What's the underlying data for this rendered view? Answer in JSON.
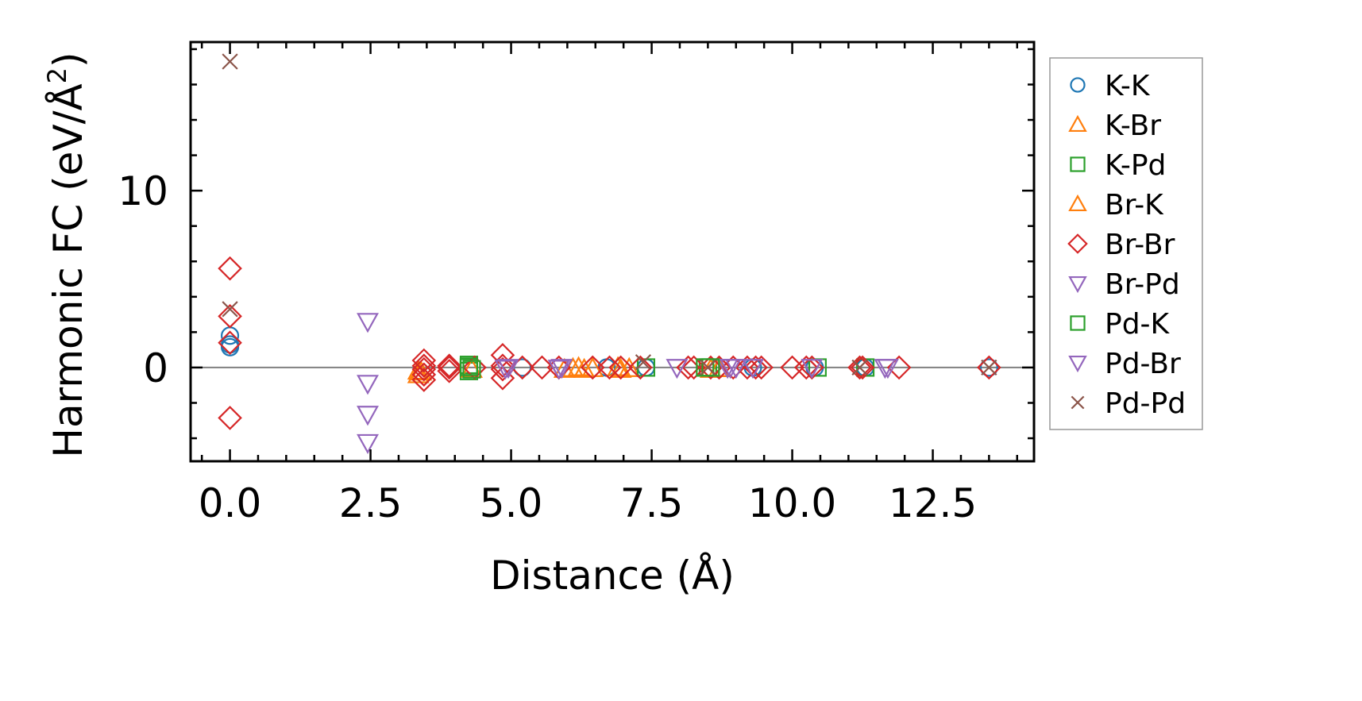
{
  "chart_data": {
    "type": "scatter",
    "xlabel": "Distance (Å)",
    "ylabel_main": "Harmonic FC (eV/Å",
    "ylabel_sup": "2",
    "ylabel_close": ")",
    "xlim": [
      -0.7,
      14.3
    ],
    "ylim": [
      -5.3,
      18.4
    ],
    "xticks": [
      0.0,
      2.5,
      5.0,
      7.5,
      10.0,
      12.5
    ],
    "xtick_labels": [
      "0.0",
      "2.5",
      "5.0",
      "7.5",
      "10.0",
      "12.5"
    ],
    "yticks": [
      0,
      10
    ],
    "ytick_labels": [
      "0",
      "10"
    ],
    "x_minor_step": 0.5,
    "y_minor_step": 2,
    "zero_line": true,
    "grid": false,
    "legend_position": "outside-right",
    "series": [
      {
        "name": "K-K",
        "marker": "circle",
        "color": "#1f77b4",
        "x": [
          0.0,
          0.0,
          0.0,
          5.2,
          6.7,
          7.4,
          9.3,
          10.4,
          11.3,
          13.5
        ],
        "y": [
          1.8,
          1.3,
          1.15,
          0.0,
          0.0,
          0.0,
          0.0,
          0.0,
          0.0,
          0.0
        ]
      },
      {
        "name": "K-Br",
        "marker": "triangle-up",
        "color": "#ff7f0e",
        "x": [
          3.35,
          3.35,
          5.95,
          6.1,
          6.3,
          6.45,
          6.95,
          7.1,
          8.55,
          8.7
        ],
        "y": [
          -0.2,
          -0.4,
          -0.1,
          -0.05,
          -0.1,
          -0.05,
          -0.1,
          -0.05,
          -0.1,
          -0.05
        ]
      },
      {
        "name": "K-Pd",
        "marker": "square",
        "color": "#2ca02c",
        "x": [
          4.25,
          4.25,
          4.25,
          7.4,
          8.5,
          10.45,
          11.3
        ],
        "y": [
          0.15,
          0.0,
          -0.2,
          0.0,
          0.0,
          0.0,
          0.0
        ]
      },
      {
        "name": "Br-K",
        "marker": "triangle-up",
        "color": "#ff7f0e",
        "x": [
          3.4,
          4.3,
          6.2,
          6.9,
          8.7
        ],
        "y": [
          -0.25,
          -0.1,
          0.0,
          0.0,
          -0.05
        ]
      },
      {
        "name": "Br-Br",
        "marker": "diamond",
        "color": "#d62728",
        "x": [
          0.0,
          0.0,
          0.0,
          0.0,
          3.45,
          3.45,
          3.45,
          3.45,
          3.45,
          3.9,
          3.9,
          3.9,
          4.35,
          4.85,
          4.85,
          4.85,
          4.85,
          5.2,
          5.55,
          5.85,
          6.45,
          6.75,
          6.95,
          7.3,
          8.15,
          8.25,
          8.55,
          8.7,
          8.95,
          9.2,
          9.35,
          9.45,
          10.0,
          10.25,
          10.35,
          11.2,
          11.25,
          11.9,
          13.5
        ],
        "y": [
          5.6,
          2.9,
          1.4,
          -2.85,
          0.4,
          0.1,
          -0.1,
          -0.4,
          -0.7,
          0.1,
          0.0,
          -0.2,
          0.0,
          0.7,
          0.1,
          -0.1,
          -0.6,
          0.0,
          0.0,
          0.0,
          0.0,
          0.0,
          0.0,
          0.0,
          0.0,
          0.0,
          0.0,
          0.0,
          0.0,
          0.0,
          0.0,
          0.0,
          0.0,
          0.0,
          0.0,
          0.0,
          0.0,
          0.0,
          0.0
        ]
      },
      {
        "name": "Br-Pd",
        "marker": "triangle-down",
        "color": "#9467bd",
        "x": [
          2.45,
          2.45,
          2.45,
          2.45,
          4.9,
          5.85,
          5.9,
          7.95,
          8.85,
          9.0,
          9.3,
          10.35,
          11.7
        ],
        "y": [
          2.6,
          -0.9,
          -2.65,
          -4.25,
          -0.05,
          -0.05,
          0.0,
          0.0,
          0.0,
          0.0,
          0.0,
          0.0,
          0.0
        ]
      },
      {
        "name": "Pd-K",
        "marker": "square",
        "color": "#2ca02c",
        "x": [
          4.25,
          4.3,
          8.45,
          8.55
        ],
        "y": [
          0.05,
          -0.1,
          0.0,
          0.0
        ]
      },
      {
        "name": "Pd-Br",
        "marker": "triangle-down",
        "color": "#9467bd",
        "x": [
          4.95,
          5.85,
          8.9,
          11.65
        ],
        "y": [
          0.0,
          -0.05,
          0.0,
          0.0
        ]
      },
      {
        "name": "Pd-Pd",
        "marker": "x",
        "color": "#8c564b",
        "x": [
          0.0,
          0.0,
          7.35,
          8.5,
          11.2,
          13.5
        ],
        "y": [
          17.3,
          3.3,
          0.3,
          0.0,
          0.0,
          0.0
        ]
      }
    ]
  }
}
